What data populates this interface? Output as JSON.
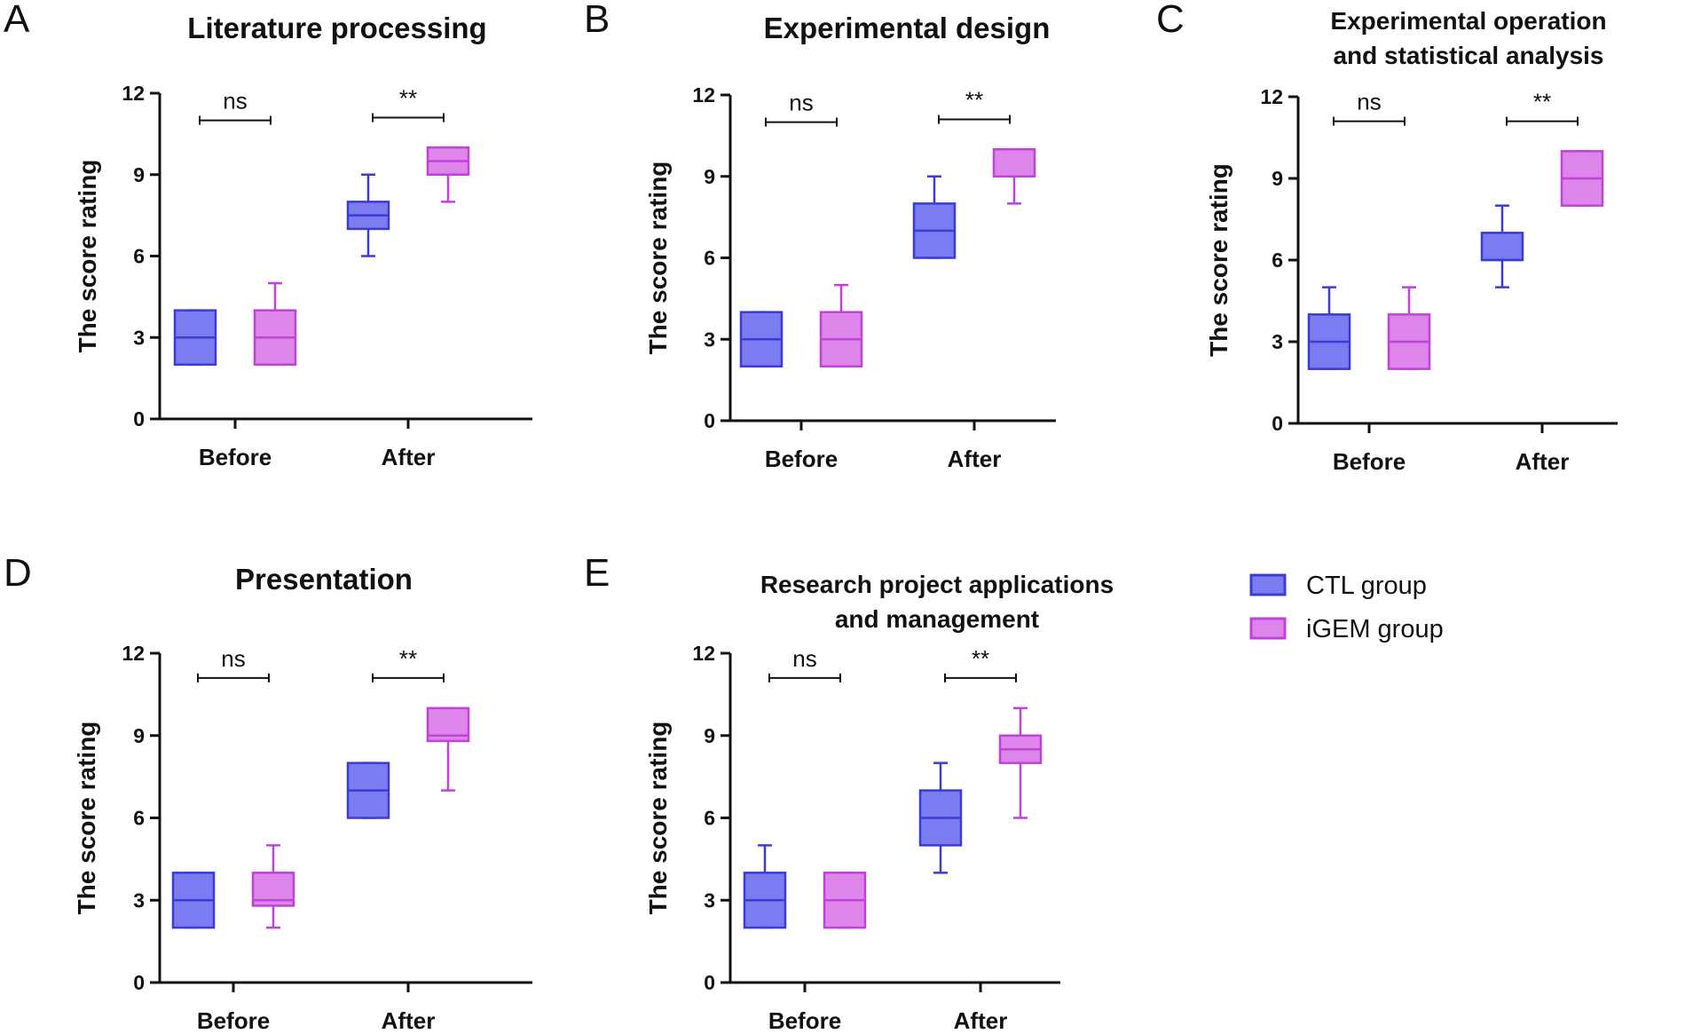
{
  "chart_data": [
    {
      "panel": "A",
      "type": "boxplot",
      "title": [
        "Literature processing"
      ],
      "ylabel": "The score rating",
      "ylim": [
        0,
        12
      ],
      "yticks": [
        0,
        3,
        6,
        9,
        12
      ],
      "categories": [
        "Before",
        "After"
      ],
      "series": [
        {
          "name": "CTL group",
          "boxes": [
            {
              "category": "Before",
              "min": 2,
              "q1": 2,
              "median": 3,
              "q3": 4,
              "max": 4
            },
            {
              "category": "After",
              "min": 6,
              "q1": 7,
              "median": 7.5,
              "q3": 8,
              "max": 9
            }
          ]
        },
        {
          "name": "iGEM group",
          "boxes": [
            {
              "category": "Before",
              "min": 2,
              "q1": 2,
              "median": 3,
              "q3": 4,
              "max": 5
            },
            {
              "category": "After",
              "min": 8,
              "q1": 9,
              "median": 9.5,
              "q3": 10,
              "max": 10
            }
          ]
        }
      ],
      "significance": [
        {
          "category": "Before",
          "label": "ns",
          "y": 11
        },
        {
          "category": "After",
          "label": "**",
          "y": 11.1
        }
      ]
    },
    {
      "panel": "B",
      "type": "boxplot",
      "title": [
        "Experimental design"
      ],
      "ylabel": "The score rating",
      "ylim": [
        0,
        12
      ],
      "yticks": [
        0,
        3,
        6,
        9,
        12
      ],
      "categories": [
        "Before",
        "After"
      ],
      "series": [
        {
          "name": "CTL group",
          "boxes": [
            {
              "category": "Before",
              "min": 2,
              "q1": 2,
              "median": 3,
              "q3": 4,
              "max": 4
            },
            {
              "category": "After",
              "min": 6,
              "q1": 6,
              "median": 7,
              "q3": 8,
              "max": 9
            }
          ]
        },
        {
          "name": "iGEM group",
          "boxes": [
            {
              "category": "Before",
              "min": 2,
              "q1": 2,
              "median": 3,
              "q3": 4,
              "max": 5
            },
            {
              "category": "After",
              "min": 8,
              "q1": 9,
              "median": 9,
              "q3": 10,
              "max": 10
            }
          ]
        }
      ],
      "significance": [
        {
          "category": "Before",
          "label": "ns",
          "y": 11
        },
        {
          "category": "After",
          "label": "**",
          "y": 11.1
        }
      ]
    },
    {
      "panel": "C",
      "type": "boxplot",
      "title": [
        "Experimental operation",
        "and statistical analysis"
      ],
      "ylabel": "The score rating",
      "ylim": [
        0,
        12
      ],
      "yticks": [
        0,
        3,
        6,
        9,
        12
      ],
      "categories": [
        "Before",
        "After"
      ],
      "series": [
        {
          "name": "CTL group",
          "boxes": [
            {
              "category": "Before",
              "min": 2,
              "q1": 2,
              "median": 3,
              "q3": 4,
              "max": 5
            },
            {
              "category": "After",
              "min": 5,
              "q1": 6,
              "median": 6,
              "q3": 7,
              "max": 8
            }
          ]
        },
        {
          "name": "iGEM group",
          "boxes": [
            {
              "category": "Before",
              "min": 2,
              "q1": 2,
              "median": 3,
              "q3": 4,
              "max": 5
            },
            {
              "category": "After",
              "min": 8,
              "q1": 8,
              "median": 9,
              "q3": 10,
              "max": 10
            }
          ]
        }
      ],
      "significance": [
        {
          "category": "Before",
          "label": "ns",
          "y": 11.1
        },
        {
          "category": "After",
          "label": "**",
          "y": 11.1
        }
      ]
    },
    {
      "panel": "D",
      "type": "boxplot",
      "title": [
        "Presentation"
      ],
      "ylabel": "The score rating",
      "ylim": [
        0,
        12
      ],
      "yticks": [
        0,
        3,
        6,
        9,
        12
      ],
      "categories": [
        "Before",
        "After"
      ],
      "series": [
        {
          "name": "CTL group",
          "boxes": [
            {
              "category": "Before",
              "min": 2,
              "q1": 2,
              "median": 3,
              "q3": 4,
              "max": 4
            },
            {
              "category": "After",
              "min": 6,
              "q1": 6,
              "median": 7,
              "q3": 8,
              "max": 8
            }
          ]
        },
        {
          "name": "iGEM group",
          "boxes": [
            {
              "category": "Before",
              "min": 2,
              "q1": 2.8,
              "median": 3,
              "q3": 4,
              "max": 5
            },
            {
              "category": "After",
              "min": 7,
              "q1": 8.8,
              "median": 9,
              "q3": 10,
              "max": 10
            }
          ]
        }
      ],
      "significance": [
        {
          "category": "Before",
          "label": "ns",
          "y": 11.1
        },
        {
          "category": "After",
          "label": "**",
          "y": 11.1
        }
      ]
    },
    {
      "panel": "E",
      "type": "boxplot",
      "title": [
        "Research project applications",
        "and management"
      ],
      "ylabel": "The score rating",
      "ylim": [
        0,
        12
      ],
      "yticks": [
        0,
        3,
        6,
        9,
        12
      ],
      "categories": [
        "Before",
        "After"
      ],
      "series": [
        {
          "name": "CTL group",
          "boxes": [
            {
              "category": "Before",
              "min": 2,
              "q1": 2,
              "median": 3,
              "q3": 4,
              "max": 5
            },
            {
              "category": "After",
              "min": 4,
              "q1": 5,
              "median": 6,
              "q3": 7,
              "max": 8
            }
          ]
        },
        {
          "name": "iGEM group",
          "boxes": [
            {
              "category": "Before",
              "min": 2,
              "q1": 2,
              "median": 3,
              "q3": 4,
              "max": 4
            },
            {
              "category": "After",
              "min": 6,
              "q1": 8,
              "median": 8.5,
              "q3": 9,
              "max": 10
            }
          ]
        }
      ],
      "significance": [
        {
          "category": "Before",
          "label": "ns",
          "y": 11.1
        },
        {
          "category": "After",
          "label": "**",
          "y": 11.1
        }
      ]
    }
  ],
  "legend": {
    "items": [
      {
        "label": "CTL group",
        "fill": "#7b7bf2",
        "stroke": "#3b3bd6"
      },
      {
        "label": "iGEM group",
        "fill": "#dd85ea",
        "stroke": "#c042d8"
      }
    ]
  }
}
